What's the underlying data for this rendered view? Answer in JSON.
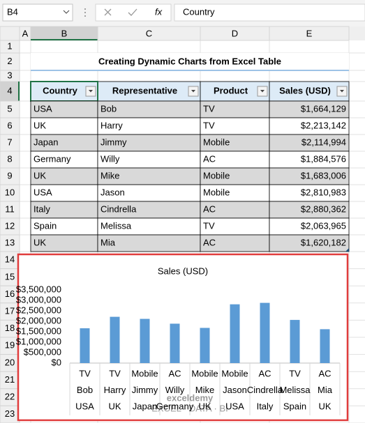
{
  "formula_bar": {
    "name_box": "B4",
    "function_label": "fx",
    "content": "Country"
  },
  "sheet": {
    "columns": [
      "A",
      "B",
      "C",
      "D",
      "E"
    ],
    "rows": [
      1,
      2,
      3,
      4,
      5,
      6,
      7,
      8,
      9,
      10,
      11,
      12,
      13,
      14,
      15,
      16,
      17,
      18,
      19,
      20,
      21,
      22,
      23
    ]
  },
  "title": "Creating Dynamic Charts from Excel Table",
  "table": {
    "header": [
      "Country",
      "Representative",
      "Product",
      "Sales (USD)"
    ],
    "rows": [
      [
        "USA",
        "Bob",
        "TV",
        "$1,664,129"
      ],
      [
        "UK",
        "Harry",
        "TV",
        "$2,213,142"
      ],
      [
        "Japan",
        "Jimmy",
        "Mobile",
        "$2,114,994"
      ],
      [
        "Germany",
        "Willy",
        "AC",
        "$1,884,576"
      ],
      [
        "UK",
        "Mike",
        "Mobile",
        "$1,683,006"
      ],
      [
        "USA",
        "Jason",
        "Mobile",
        "$2,810,983"
      ],
      [
        "Italy",
        "Cindrella",
        "AC",
        "$2,880,362"
      ],
      [
        "Spain",
        "Melissa",
        "TV",
        "$2,063,965"
      ],
      [
        "UK",
        "Mia",
        "AC",
        "$1,620,182"
      ]
    ]
  },
  "chart_data": {
    "type": "bar",
    "title": "Sales (USD)",
    "categories": [
      [
        "TV",
        "Bob",
        "USA"
      ],
      [
        "TV",
        "Harry",
        "UK"
      ],
      [
        "Mobile",
        "Jimmy",
        "Japan"
      ],
      [
        "AC",
        "Willy",
        "Germany"
      ],
      [
        "Mobile",
        "Mike",
        "UK"
      ],
      [
        "Mobile",
        "Jason",
        "USA"
      ],
      [
        "AC",
        "Cindrella",
        "Italy"
      ],
      [
        "TV",
        "Melissa",
        "Spain"
      ],
      [
        "AC",
        "Mia",
        "UK"
      ]
    ],
    "values": [
      1664129,
      2213142,
      2114994,
      1884576,
      1683006,
      2810983,
      2880362,
      2063965,
      1620182
    ],
    "color": "#5b9bd5",
    "ylim": [
      0,
      3500000
    ],
    "yticks": [
      {
        "value": 0,
        "label": "$0"
      },
      {
        "value": 500000,
        "label": "$500,000"
      },
      {
        "value": 1000000,
        "label": "$1,000,000"
      },
      {
        "value": 1500000,
        "label": "$1,500,000"
      },
      {
        "value": 2000000,
        "label": "$2,000,000"
      },
      {
        "value": 2500000,
        "label": "$2,500,000"
      },
      {
        "value": 3000000,
        "label": "$3,000,000"
      },
      {
        "value": 3500000,
        "label": "$3,500,000"
      }
    ],
    "grid": false
  },
  "watermark": {
    "name": "exceldemy",
    "tagline": "EXCEL · DATA · BI"
  }
}
